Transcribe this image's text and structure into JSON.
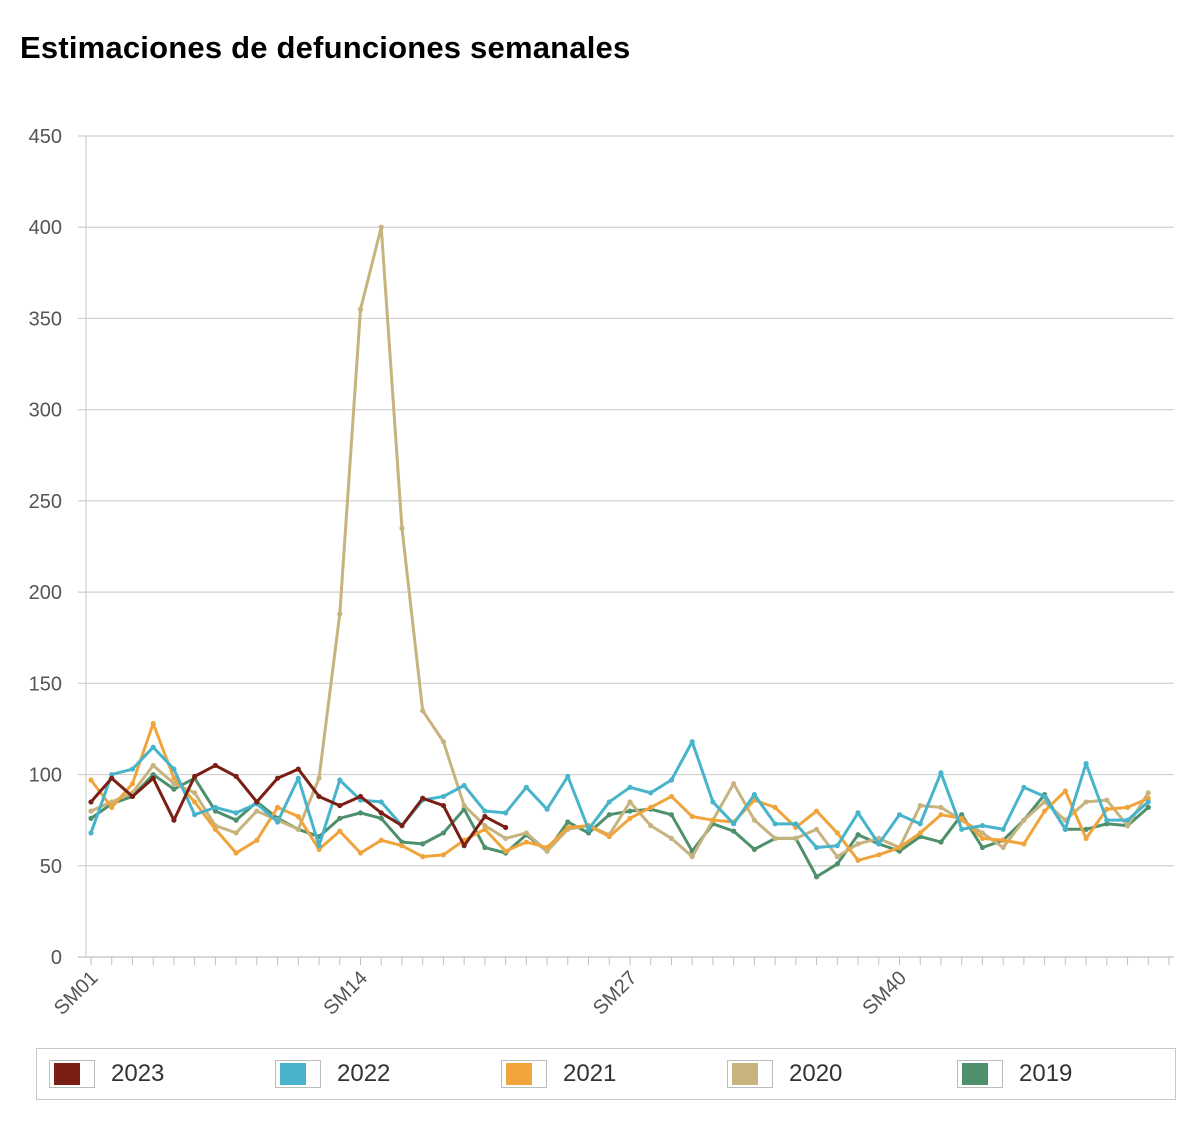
{
  "chart_data": {
    "type": "line",
    "title": "Estimaciones de defunciones semanales",
    "xlabel": "",
    "ylabel": "",
    "ylim": [
      0,
      450
    ],
    "yticks": [
      0,
      50,
      100,
      150,
      200,
      250,
      300,
      350,
      400,
      450
    ],
    "x_tick_labels": [
      {
        "week": 1,
        "label": "SM01"
      },
      {
        "week": 14,
        "label": "SM14"
      },
      {
        "week": 27,
        "label": "SM27"
      },
      {
        "week": 40,
        "label": "SM40"
      }
    ],
    "x_range": [
      1,
      53
    ],
    "grid": "horizontal",
    "legend_position": "bottom",
    "series": [
      {
        "name": "2019",
        "color": "#4e8f6c",
        "values": [
          76,
          84,
          88,
          100,
          92,
          98,
          80,
          75,
          85,
          76,
          70,
          66,
          76,
          79,
          76,
          63,
          62,
          68,
          81,
          60,
          57,
          67,
          58,
          74,
          68,
          78,
          80,
          81,
          78,
          58,
          73,
          69,
          59,
          65,
          65,
          44,
          51,
          67,
          62,
          58,
          66,
          63,
          78,
          60,
          64,
          75,
          89,
          70,
          70,
          73,
          72,
          82
        ]
      },
      {
        "name": "2020",
        "color": "#c7b37e",
        "values": [
          80,
          85,
          90,
          105,
          95,
          90,
          72,
          68,
          80,
          75,
          70,
          98,
          188,
          355,
          400,
          235,
          135,
          118,
          83,
          72,
          65,
          68,
          58,
          70,
          72,
          67,
          85,
          72,
          65,
          55,
          75,
          95,
          75,
          65,
          65,
          70,
          55,
          62,
          65,
          60,
          83,
          82,
          75,
          68,
          60,
          75,
          85,
          75,
          85,
          86,
          72,
          90
        ]
      },
      {
        "name": "2021",
        "color": "#f0a43c",
        "values": [
          97,
          82,
          95,
          128,
          98,
          85,
          70,
          57,
          64,
          82,
          77,
          59,
          69,
          57,
          64,
          61,
          55,
          56,
          64,
          70,
          58,
          63,
          60,
          71,
          72,
          66,
          76,
          82,
          88,
          77,
          75,
          74,
          86,
          82,
          71,
          80,
          68,
          53,
          56,
          60,
          68,
          78,
          76,
          65,
          64,
          62,
          80,
          91,
          65,
          81,
          82,
          87
        ]
      },
      {
        "name": "2022",
        "color": "#47b4cb",
        "values": [
          68,
          100,
          103,
          115,
          103,
          78,
          82,
          79,
          84,
          74,
          98,
          61,
          97,
          86,
          85,
          72,
          86,
          88,
          94,
          80,
          79,
          93,
          81,
          99,
          70,
          85,
          93,
          90,
          97,
          118,
          85,
          73,
          89,
          73,
          73,
          60,
          61,
          79,
          62,
          78,
          73,
          101,
          70,
          72,
          70,
          93,
          88,
          70,
          106,
          75,
          75,
          85
        ]
      },
      {
        "name": "2023",
        "color": "#7a1f14",
        "values": [
          85,
          98,
          88,
          98,
          75,
          99,
          105,
          99,
          85,
          98,
          103,
          88,
          83,
          88,
          79,
          72,
          87,
          83,
          61,
          77,
          71
        ]
      }
    ]
  }
}
